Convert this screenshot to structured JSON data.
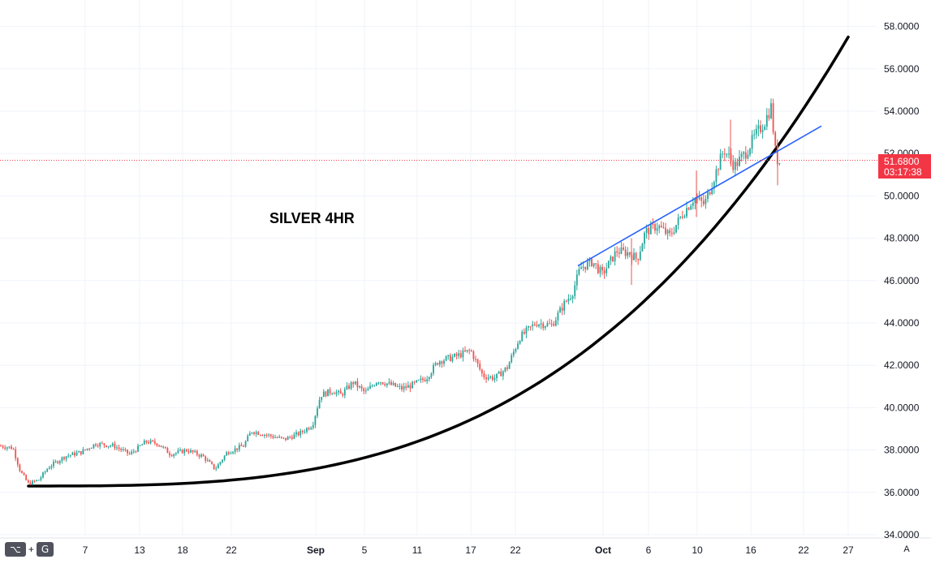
{
  "chart_data": {
    "type": "candlestick",
    "title": "SILVER 4HR",
    "ylim": [
      34,
      58.6
    ],
    "y_ticks": [
      "58.0000",
      "56.0000",
      "54.0000",
      "52.0000",
      "50.0000",
      "48.0000",
      "46.0000",
      "44.0000",
      "42.0000",
      "40.0000",
      "38.0000",
      "36.0000",
      "34.0000"
    ],
    "x_ticks": [
      {
        "label": "7",
        "bold": false
      },
      {
        "label": "13",
        "bold": false
      },
      {
        "label": "18",
        "bold": false
      },
      {
        "label": "22",
        "bold": false
      },
      {
        "label": "Sep",
        "bold": true
      },
      {
        "label": "5",
        "bold": false
      },
      {
        "label": "11",
        "bold": false
      },
      {
        "label": "17",
        "bold": false
      },
      {
        "label": "22",
        "bold": false
      },
      {
        "label": "Oct",
        "bold": true
      },
      {
        "label": "6",
        "bold": false
      },
      {
        "label": "10",
        "bold": false
      },
      {
        "label": "16",
        "bold": false
      },
      {
        "label": "22",
        "bold": false
      },
      {
        "label": "27",
        "bold": false
      }
    ],
    "last_price": "51.6800",
    "last_price_value": 51.68,
    "countdown": "03:17:38",
    "price_path": [
      [
        0,
        38.2
      ],
      [
        16,
        38.1
      ],
      [
        25,
        37.0
      ],
      [
        35,
        36.4
      ],
      [
        48,
        36.6
      ],
      [
        60,
        37.2
      ],
      [
        80,
        37.7
      ],
      [
        100,
        37.9
      ],
      [
        118,
        38.3
      ],
      [
        140,
        38.2
      ],
      [
        160,
        37.8
      ],
      [
        180,
        38.4
      ],
      [
        195,
        38.3
      ],
      [
        210,
        37.8
      ],
      [
        230,
        38.0
      ],
      [
        250,
        37.7
      ],
      [
        265,
        37.1
      ],
      [
        280,
        37.9
      ],
      [
        300,
        38.2
      ],
      [
        310,
        38.9
      ],
      [
        330,
        38.7
      ],
      [
        350,
        38.5
      ],
      [
        370,
        38.8
      ],
      [
        385,
        39.2
      ],
      [
        395,
        40.6
      ],
      [
        410,
        40.8
      ],
      [
        420,
        40.6
      ],
      [
        435,
        41.2
      ],
      [
        450,
        40.7
      ],
      [
        465,
        41.3
      ],
      [
        480,
        41.1
      ],
      [
        495,
        40.9
      ],
      [
        510,
        41.1
      ],
      [
        525,
        41.4
      ],
      [
        540,
        42.2
      ],
      [
        560,
        42.4
      ],
      [
        580,
        42.7
      ],
      [
        595,
        41.5
      ],
      [
        610,
        41.4
      ],
      [
        625,
        41.9
      ],
      [
        640,
        43.3
      ],
      [
        660,
        44.0
      ],
      [
        680,
        43.9
      ],
      [
        695,
        44.9
      ],
      [
        705,
        45.4
      ],
      [
        715,
        46.6
      ],
      [
        730,
        46.9
      ],
      [
        742,
        46.3
      ],
      [
        760,
        47.4
      ],
      [
        775,
        47.3
      ],
      [
        785,
        47.0
      ],
      [
        795,
        48.3
      ],
      [
        810,
        48.6
      ],
      [
        825,
        48.1
      ],
      [
        840,
        49.1
      ],
      [
        855,
        49.9
      ],
      [
        868,
        49.6
      ],
      [
        880,
        50.9
      ],
      [
        892,
        52.2
      ],
      [
        905,
        51.4
      ],
      [
        918,
        52.0
      ],
      [
        930,
        52.8
      ],
      [
        942,
        53.5
      ],
      [
        950,
        54.2
      ],
      [
        956,
        51.8
      ],
      [
        960,
        51.6
      ],
      [
        963,
        51.7
      ]
    ],
    "trend_curve_black": [
      [
        35,
        36.3
      ],
      [
        1045,
        57.5
      ]
    ],
    "trend_line_blue": [
      [
        712,
        46.7
      ],
      [
        1012,
        53.3
      ]
    ],
    "colors": {
      "up": "#26a69a",
      "down": "#ef5350",
      "curve": "#000000",
      "trendline": "#2962ff",
      "price_line": "#f23645",
      "grid": "#f0f3fa"
    }
  },
  "toolbar": {
    "shortcut_key_1": "⌥",
    "plus": "+",
    "shortcut_key_2": "G",
    "auto_label": "A"
  }
}
